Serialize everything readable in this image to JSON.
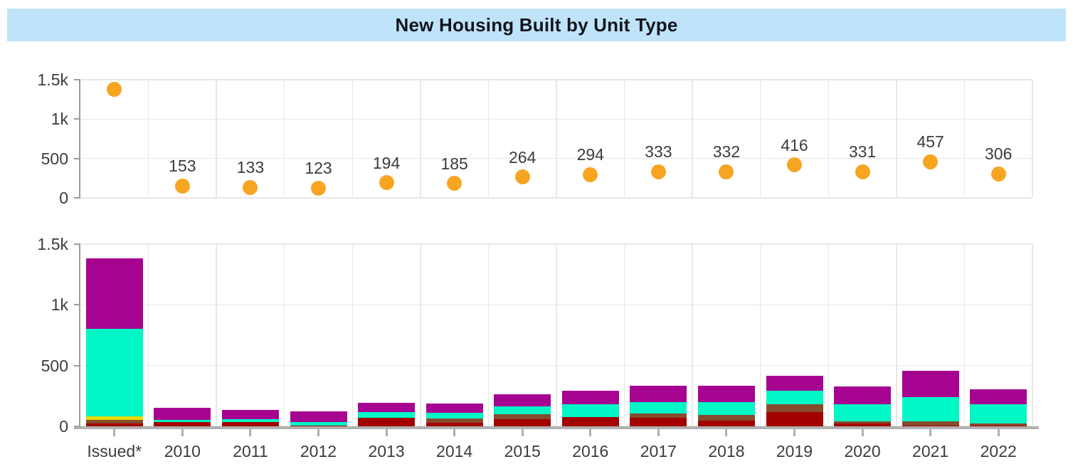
{
  "title": "New Housing Built by Unit Type",
  "colors": {
    "title_bg": "#BFE4FA",
    "title_text": "#13151C",
    "marker": "#F7A521",
    "gridline": "#E8E8E8",
    "axis": "#9C9C9C",
    "baseline": "#B0B0B0",
    "label": "#3C3C3C"
  },
  "chart_data": [
    {
      "type": "scatter",
      "title": "",
      "categories": [
        "Issued*",
        "2010",
        "2011",
        "2012",
        "2013",
        "2014",
        "2015",
        "2016",
        "2017",
        "2018",
        "2019",
        "2020",
        "2021",
        "2022"
      ],
      "values": [
        1380,
        153,
        133,
        123,
        194,
        185,
        264,
        294,
        333,
        332,
        416,
        331,
        457,
        306
      ],
      "point_labels": [
        "",
        "153",
        "133",
        "123",
        "194",
        "185",
        "264",
        "294",
        "333",
        "332",
        "416",
        "331",
        "457",
        "306"
      ],
      "marker_color": "#F7A521",
      "ylim": [
        0,
        1500
      ],
      "yticks": [
        0,
        500,
        1000,
        1500
      ],
      "ytick_labels": [
        "0",
        "500",
        "1k",
        "1.5k"
      ],
      "grid": true,
      "legend": false,
      "show_x_labels": false
    },
    {
      "type": "bar",
      "stacked": true,
      "title": "",
      "categories": [
        "Issued*",
        "2010",
        "2011",
        "2012",
        "2013",
        "2014",
        "2015",
        "2016",
        "2017",
        "2018",
        "2019",
        "2020",
        "2021",
        "2022"
      ],
      "series": [
        {
          "name": "dark-red",
          "color": "#A30000",
          "values": [
            25,
            33,
            37,
            8,
            73,
            28,
            57,
            76,
            72,
            45,
            115,
            23,
            8,
            5
          ]
        },
        {
          "name": "brown",
          "color": "#874C2E",
          "values": [
            25,
            0,
            0,
            0,
            0,
            38,
            44,
            0,
            33,
            51,
            65,
            18,
            33,
            20
          ]
        },
        {
          "name": "yellow",
          "color": "#E8DC00",
          "values": [
            35,
            0,
            0,
            0,
            0,
            0,
            0,
            0,
            0,
            0,
            0,
            0,
            0,
            0
          ]
        },
        {
          "name": "turquoise",
          "color": "#00F7C6",
          "values": [
            715,
            20,
            20,
            27,
            46,
            43,
            63,
            104,
            92,
            101,
            111,
            142,
            201,
            155
          ]
        },
        {
          "name": "purple",
          "color": "#A60390",
          "values": [
            580,
            100,
            76,
            88,
            75,
            76,
            100,
            114,
            136,
            135,
            125,
            148,
            215,
            126
          ]
        }
      ],
      "ylim": [
        0,
        1500
      ],
      "yticks": [
        0,
        500,
        1000,
        1500
      ],
      "ytick_labels": [
        "0",
        "500",
        "1k",
        "1.5k"
      ],
      "grid": true,
      "legend": false,
      "show_x_labels": true
    }
  ]
}
